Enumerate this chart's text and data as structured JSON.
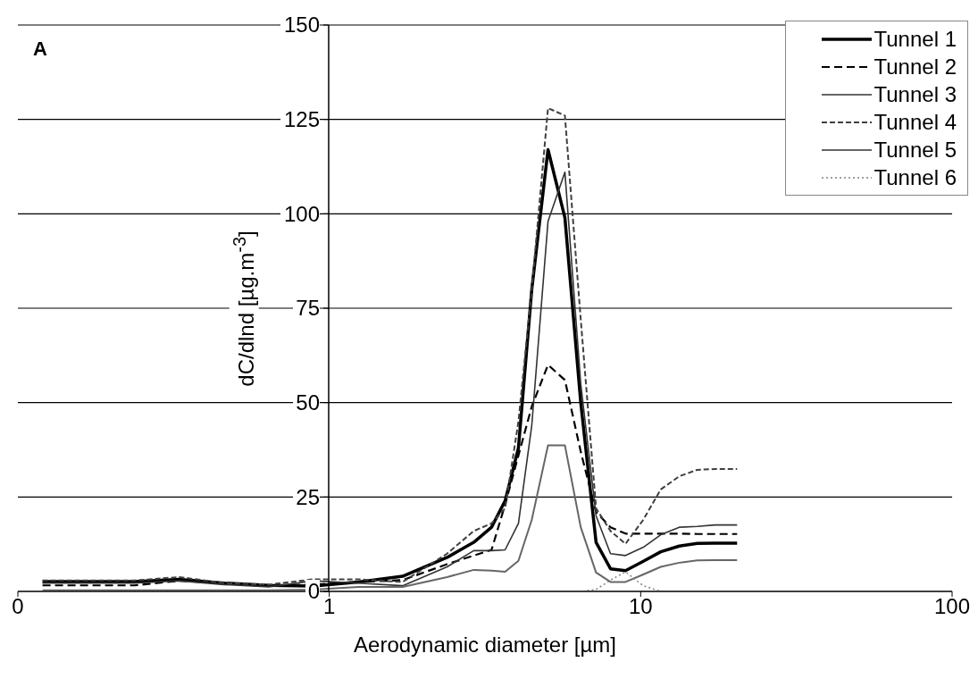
{
  "chart_data": {
    "type": "line",
    "xlabel": "Aerodynamic diameter [µm]",
    "ylabel": "dC/dlnd [µg.m$^{-3}$]",
    "annotations": [
      "A"
    ],
    "x": [
      0.12,
      0.171,
      0.237,
      0.33,
      0.459,
      0.639,
      0.888,
      1.24,
      1.72,
      2.39,
      2.91,
      3.32,
      3.67,
      4.05,
      4.47,
      5.04,
      5.71,
      6.42,
      7.19,
      8.0,
      8.94,
      10.2,
      11.6,
      13.3,
      15.2,
      17.3,
      20.4
    ],
    "series": [
      {
        "name": "Tunnel 1",
        "color": "#000000",
        "line_style": "solid",
        "values": [
          2.6,
          2.6,
          2.6,
          3.2,
          2.2,
          1.6,
          1.4,
          2.5,
          4,
          9,
          13,
          17,
          24,
          38,
          80,
          117,
          99,
          50,
          13,
          6,
          5.5,
          8,
          10.5,
          12,
          12.7,
          12.8,
          12.8
        ]
      },
      {
        "name": "Tunnel 2",
        "color": "#000000",
        "line_style": "dashed",
        "values": [
          1.6,
          1.6,
          1.6,
          2.8,
          2.2,
          1.6,
          1.8,
          2.5,
          3,
          7.2,
          9.5,
          11,
          23,
          36,
          49,
          60,
          56,
          37,
          21,
          17,
          15.3,
          15.3,
          15.3,
          15.3,
          15.2,
          15.2,
          15.2
        ]
      },
      {
        "name": "Tunnel 3",
        "color": "#333333",
        "line_style": "solid",
        "values": [
          2.2,
          2.2,
          2.2,
          2.8,
          1.8,
          1.2,
          2.8,
          2.2,
          1.5,
          6.5,
          10.8,
          10.8,
          11,
          18,
          44,
          98,
          111,
          55,
          20,
          10,
          9.5,
          11.7,
          15,
          17,
          17.2,
          17.6,
          17.6
        ]
      },
      {
        "name": "Tunnel 4",
        "color": "#404040",
        "line_style": "dashed",
        "values": [
          2.9,
          2.9,
          2.9,
          3.8,
          2.2,
          1.8,
          3.2,
          3.2,
          2.5,
          10,
          16,
          18,
          22,
          45,
          80,
          128,
          126,
          72,
          22,
          16,
          12.6,
          19,
          27,
          30.5,
          32.2,
          32.4,
          32.4
        ]
      },
      {
        "name": "Tunnel 5",
        "color": "#666666",
        "line_style": "solid",
        "values": [
          0.3,
          0.3,
          0.3,
          0.3,
          0.3,
          0.3,
          0.5,
          1.2,
          1.2,
          3.8,
          5.7,
          5.5,
          5.2,
          8.1,
          19,
          38.7,
          38.7,
          17,
          5,
          2.5,
          2.5,
          4.5,
          6.5,
          7.6,
          8.2,
          8.3,
          8.3
        ]
      },
      {
        "name": "Tunnel 6",
        "color": "#808080",
        "line_style": "dotted",
        "values": [
          0,
          0,
          0,
          0,
          0,
          0,
          0,
          0,
          0,
          0,
          0,
          0,
          0,
          0,
          0,
          0,
          0,
          0,
          0.5,
          3,
          5.2,
          1.5,
          0,
          0,
          0,
          0,
          0
        ]
      }
    ],
    "log": "x",
    "xlim": [
      0.1,
      100
    ],
    "xticks": [
      {
        "value": 0.1,
        "label": "0"
      },
      1,
      10,
      100
    ],
    "ylim": [
      0,
      150
    ],
    "yticks": [
      0,
      25,
      50,
      75,
      100,
      125,
      150
    ],
    "grid": "y",
    "legend": "top right",
    "marker": "none"
  }
}
